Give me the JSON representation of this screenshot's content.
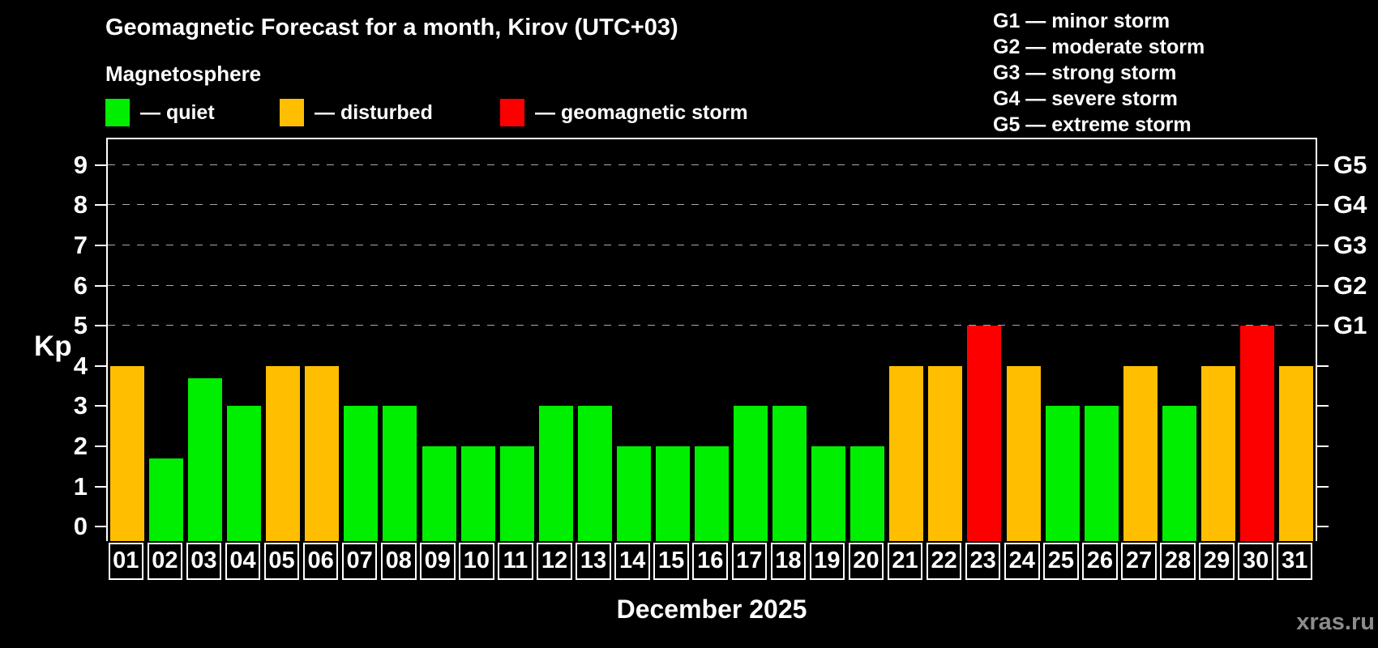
{
  "header": {
    "title": "Geomagnetic Forecast for a month, Kirov (UTC+03)",
    "subtitle": "Magnetosphere"
  },
  "legend": {
    "items": [
      {
        "key": "quiet",
        "label": "— quiet"
      },
      {
        "key": "disturbed",
        "label": "— disturbed"
      },
      {
        "key": "storm",
        "label": "— geomagnetic storm"
      }
    ]
  },
  "storm_scale_legend": {
    "items": [
      "G1 — minor storm",
      "G2 — moderate storm",
      "G3 — strong storm",
      "G4 — severe storm",
      "G5 — extreme storm"
    ]
  },
  "colors": {
    "quiet": "#00EE00",
    "disturbed": "#FFBF00",
    "storm": "#FC0000",
    "grid": "#a8a8a8",
    "axis": "#ffffff",
    "watermark": "#8c8c8c"
  },
  "axes": {
    "y_label": "Kp",
    "y_ticks": [
      0,
      1,
      2,
      3,
      4,
      5,
      6,
      7,
      8,
      9
    ],
    "right_labels": [
      {
        "kp": 5,
        "label": "G1"
      },
      {
        "kp": 6,
        "label": "G2"
      },
      {
        "kp": 7,
        "label": "G3"
      },
      {
        "kp": 8,
        "label": "G4"
      },
      {
        "kp": 9,
        "label": "G5"
      }
    ],
    "x_caption": "December 2025"
  },
  "watermark": "xras.ru",
  "chart_data": {
    "type": "bar",
    "title": "Geomagnetic Forecast for a month, Kirov (UTC+03)",
    "xlabel": "December 2025",
    "ylabel": "Kp",
    "ylim": [
      0,
      9
    ],
    "grid": "dashed horizontal lines at Kp 5-9 (G1-G5)",
    "categories": [
      "01",
      "02",
      "03",
      "04",
      "05",
      "06",
      "07",
      "08",
      "09",
      "10",
      "11",
      "12",
      "13",
      "14",
      "15",
      "16",
      "17",
      "18",
      "19",
      "20",
      "21",
      "22",
      "23",
      "24",
      "25",
      "26",
      "27",
      "28",
      "29",
      "30",
      "31"
    ],
    "values": [
      4,
      1.7,
      3.7,
      3,
      4,
      4,
      3,
      3,
      2,
      2,
      2,
      3,
      3,
      2,
      2,
      2,
      3,
      3,
      2,
      2,
      4,
      4,
      5,
      4,
      3,
      3,
      4,
      3,
      4,
      5,
      4
    ],
    "statuses": [
      "disturbed",
      "quiet",
      "quiet",
      "quiet",
      "disturbed",
      "disturbed",
      "quiet",
      "quiet",
      "quiet",
      "quiet",
      "quiet",
      "quiet",
      "quiet",
      "quiet",
      "quiet",
      "quiet",
      "quiet",
      "quiet",
      "quiet",
      "quiet",
      "disturbed",
      "disturbed",
      "storm",
      "disturbed",
      "quiet",
      "quiet",
      "disturbed",
      "quiet",
      "disturbed",
      "storm",
      "disturbed"
    ]
  }
}
